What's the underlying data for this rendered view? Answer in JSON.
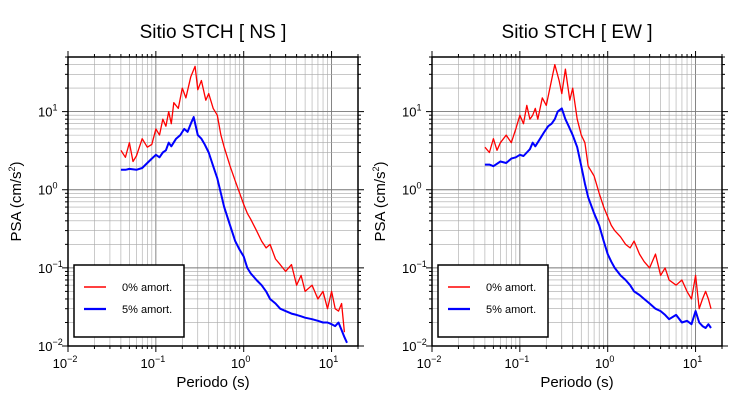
{
  "chart_data": [
    {
      "type": "line",
      "title": "Sitio STCH [ NS ]",
      "xlabel": "Periodo (s)",
      "ylabel_main": "PSA (cm/s",
      "ylabel_exp": "2",
      "ylabel_close": ")",
      "xscale": "log",
      "yscale": "log",
      "xlim": [
        0.01,
        20
      ],
      "ylim": [
        0.01,
        50
      ],
      "x_ticks": [
        {
          "base": "10",
          "exp": "−2",
          "value": 0.01
        },
        {
          "base": "10",
          "exp": "−1",
          "value": 0.1
        },
        {
          "base": "10",
          "exp": "0",
          "value": 1
        },
        {
          "base": "10",
          "exp": "1",
          "value": 10
        }
      ],
      "y_ticks": [
        {
          "label": "10",
          "exp": "−2",
          "value": 0.01
        },
        {
          "label": "10",
          "exp": "−1",
          "value": 0.1
        },
        {
          "label": "10",
          "exp": "0",
          "value": 1
        },
        {
          "label": "10",
          "exp": "1",
          "value": 10
        }
      ],
      "grid": true,
      "legend_position": "bottom-left",
      "series": [
        {
          "name": "0% amort.",
          "color": "#ff0000",
          "x": [
            0.04,
            0.045,
            0.05,
            0.055,
            0.06,
            0.07,
            0.08,
            0.09,
            0.1,
            0.11,
            0.12,
            0.13,
            0.14,
            0.15,
            0.16,
            0.18,
            0.2,
            0.22,
            0.25,
            0.28,
            0.3,
            0.33,
            0.37,
            0.4,
            0.45,
            0.5,
            0.55,
            0.6,
            0.7,
            0.8,
            0.9,
            1.0,
            1.1,
            1.2,
            1.4,
            1.6,
            1.8,
            2.0,
            2.3,
            2.6,
            3.0,
            3.5,
            4.0,
            4.5,
            5.0,
            6.0,
            7.0,
            8.0,
            9.0,
            10.0,
            11.0,
            12.0,
            13.0,
            14.0
          ],
          "y": [
            3.2,
            2.6,
            4.0,
            2.3,
            2.7,
            4.5,
            3.5,
            3.8,
            6.0,
            5.0,
            8.0,
            6.5,
            10.0,
            7.0,
            13.0,
            11.0,
            20.0,
            15.0,
            28.0,
            38.0,
            19.0,
            25.0,
            14.0,
            17.0,
            11.0,
            9.0,
            5.0,
            3.5,
            2.0,
            1.3,
            0.9,
            0.65,
            0.5,
            0.42,
            0.3,
            0.22,
            0.18,
            0.2,
            0.13,
            0.11,
            0.09,
            0.11,
            0.06,
            0.08,
            0.05,
            0.06,
            0.04,
            0.05,
            0.03,
            0.05,
            0.03,
            0.028,
            0.035,
            0.015
          ]
        },
        {
          "name": "5% amort.",
          "color": "#0000ff",
          "x": [
            0.04,
            0.045,
            0.05,
            0.06,
            0.07,
            0.08,
            0.09,
            0.1,
            0.11,
            0.12,
            0.13,
            0.14,
            0.15,
            0.17,
            0.19,
            0.21,
            0.23,
            0.25,
            0.27,
            0.3,
            0.33,
            0.36,
            0.4,
            0.45,
            0.5,
            0.55,
            0.6,
            0.7,
            0.8,
            0.9,
            1.0,
            1.1,
            1.2,
            1.4,
            1.6,
            1.8,
            2.0,
            2.3,
            2.6,
            3.0,
            3.5,
            4.0,
            4.5,
            5.0,
            6.0,
            7.0,
            8.0,
            9.0,
            10.0,
            11.0,
            12.0,
            13.0,
            14.0,
            15.0
          ],
          "y": [
            1.8,
            1.8,
            1.85,
            1.8,
            1.9,
            2.2,
            2.5,
            2.8,
            2.6,
            3.0,
            3.2,
            4.0,
            3.6,
            4.5,
            5.0,
            6.0,
            5.5,
            7.0,
            8.5,
            5.0,
            4.5,
            3.8,
            3.0,
            2.0,
            1.4,
            0.9,
            0.6,
            0.35,
            0.22,
            0.17,
            0.14,
            0.1,
            0.085,
            0.07,
            0.06,
            0.05,
            0.04,
            0.035,
            0.03,
            0.028,
            0.026,
            0.025,
            0.024,
            0.023,
            0.022,
            0.021,
            0.02,
            0.02,
            0.019,
            0.018,
            0.02,
            0.016,
            0.013,
            0.011
          ]
        }
      ]
    },
    {
      "type": "line",
      "title": "Sitio STCH [ EW ]",
      "xlabel": "Periodo (s)",
      "ylabel_main": "PSA (cm/s",
      "ylabel_exp": "2",
      "ylabel_close": ")",
      "xscale": "log",
      "yscale": "log",
      "xlim": [
        0.01,
        20
      ],
      "ylim": [
        0.01,
        50
      ],
      "x_ticks": [
        {
          "base": "10",
          "exp": "−2",
          "value": 0.01
        },
        {
          "base": "10",
          "exp": "−1",
          "value": 0.1
        },
        {
          "base": "10",
          "exp": "0",
          "value": 1
        },
        {
          "base": "10",
          "exp": "1",
          "value": 10
        }
      ],
      "y_ticks": [
        {
          "label": "10",
          "exp": "−2",
          "value": 0.01
        },
        {
          "label": "10",
          "exp": "−1",
          "value": 0.1
        },
        {
          "label": "10",
          "exp": "0",
          "value": 1
        },
        {
          "label": "10",
          "exp": "1",
          "value": 10
        }
      ],
      "grid": true,
      "legend_position": "bottom-left",
      "series": [
        {
          "name": "0% amort.",
          "color": "#ff0000",
          "x": [
            0.04,
            0.045,
            0.05,
            0.055,
            0.06,
            0.07,
            0.08,
            0.09,
            0.1,
            0.11,
            0.12,
            0.13,
            0.14,
            0.15,
            0.16,
            0.18,
            0.2,
            0.22,
            0.25,
            0.28,
            0.3,
            0.33,
            0.37,
            0.4,
            0.45,
            0.5,
            0.55,
            0.6,
            0.7,
            0.8,
            0.9,
            1.0,
            1.1,
            1.2,
            1.4,
            1.6,
            1.8,
            2.0,
            2.3,
            2.6,
            3.0,
            3.5,
            4.0,
            4.5,
            5.0,
            6.0,
            7.0,
            8.0,
            9.0,
            10.0,
            11.0,
            12.0,
            13.0,
            14.0,
            15.0
          ],
          "y": [
            3.5,
            3.0,
            4.5,
            3.2,
            4.0,
            5.0,
            4.0,
            6.0,
            9.0,
            7.0,
            12.0,
            8.0,
            9.0,
            11.0,
            8.0,
            15.0,
            12.0,
            20.0,
            40.0,
            25.0,
            17.0,
            35.0,
            14.0,
            20.0,
            8.0,
            5.0,
            4.0,
            2.0,
            1.5,
            0.9,
            0.6,
            0.45,
            0.35,
            0.3,
            0.25,
            0.2,
            0.18,
            0.22,
            0.15,
            0.12,
            0.1,
            0.15,
            0.08,
            0.1,
            0.07,
            0.06,
            0.07,
            0.05,
            0.04,
            0.08,
            0.03,
            0.04,
            0.05,
            0.04,
            0.03
          ]
        },
        {
          "name": "5% amort.",
          "color": "#0000ff",
          "x": [
            0.04,
            0.045,
            0.05,
            0.06,
            0.07,
            0.08,
            0.09,
            0.1,
            0.11,
            0.12,
            0.13,
            0.14,
            0.15,
            0.17,
            0.19,
            0.21,
            0.23,
            0.25,
            0.27,
            0.3,
            0.33,
            0.36,
            0.4,
            0.45,
            0.5,
            0.55,
            0.6,
            0.7,
            0.8,
            0.9,
            1.0,
            1.1,
            1.2,
            1.4,
            1.6,
            1.8,
            2.0,
            2.3,
            2.6,
            3.0,
            3.5,
            4.0,
            4.5,
            5.0,
            6.0,
            7.0,
            8.0,
            9.0,
            10.0,
            11.0,
            12.0,
            13.0,
            14.0,
            15.0
          ],
          "y": [
            2.1,
            2.1,
            2.0,
            2.3,
            2.2,
            2.5,
            2.6,
            2.8,
            2.7,
            3.0,
            3.3,
            4.0,
            3.6,
            4.5,
            5.5,
            6.5,
            7.0,
            8.0,
            10.0,
            11.0,
            8.0,
            6.5,
            5.0,
            3.5,
            2.0,
            1.2,
            0.8,
            0.5,
            0.35,
            0.22,
            0.15,
            0.12,
            0.1,
            0.08,
            0.07,
            0.06,
            0.05,
            0.045,
            0.04,
            0.035,
            0.03,
            0.028,
            0.025,
            0.022,
            0.025,
            0.02,
            0.021,
            0.019,
            0.028,
            0.02,
            0.018,
            0.017,
            0.019,
            0.017
          ]
        }
      ]
    }
  ]
}
